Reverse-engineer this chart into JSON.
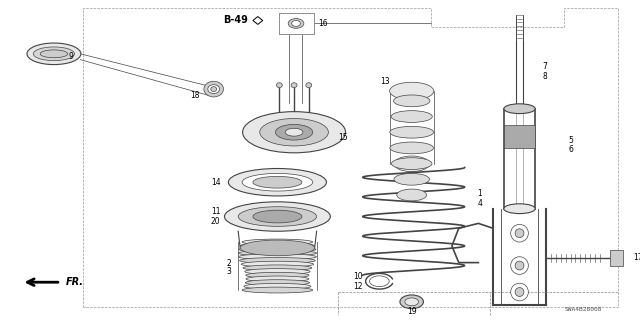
{
  "bg_color": "#ffffff",
  "line_color": "#444444",
  "gray_fill": "#cccccc",
  "dark_gray": "#888888",
  "light_gray": "#e8e8e8",
  "part_num_text": "SWA4B28008",
  "callout_ref": "B-49",
  "figsize": [
    6.4,
    3.2
  ],
  "dpi": 100
}
